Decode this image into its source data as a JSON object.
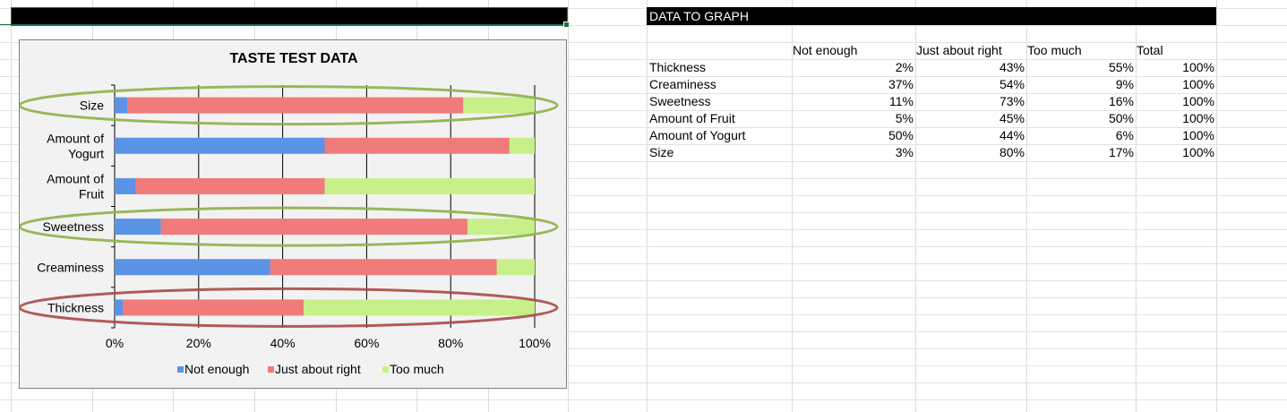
{
  "table": {
    "title": "DATA TO GRAPH",
    "headers": [
      "Not enough",
      "Just about right",
      "Too much",
      "Total"
    ],
    "rows": [
      {
        "label": "Thickness",
        "values": [
          "2%",
          "43%",
          "55%",
          "100%"
        ]
      },
      {
        "label": "Creaminess",
        "values": [
          "37%",
          "54%",
          "9%",
          "100%"
        ]
      },
      {
        "label": "Sweetness",
        "values": [
          "11%",
          "73%",
          "16%",
          "100%"
        ]
      },
      {
        "label": "Amount of Fruit",
        "values": [
          "5%",
          "45%",
          "50%",
          "100%"
        ]
      },
      {
        "label": "Amount of Yogurt",
        "values": [
          "50%",
          "44%",
          "6%",
          "100%"
        ]
      },
      {
        "label": "Size",
        "values": [
          "3%",
          "80%",
          "17%",
          "100%"
        ]
      }
    ]
  },
  "chart_data": {
    "type": "bar",
    "orientation": "horizontal",
    "stacked": true,
    "title": "TASTE TEST DATA",
    "categories": [
      "Size",
      "Amount of Yogurt",
      "Amount of Fruit",
      "Sweetness",
      "Creaminess",
      "Thickness"
    ],
    "category_lines": [
      [
        "Size"
      ],
      [
        "Amount of",
        "Yogurt"
      ],
      [
        "Amount of",
        "Fruit"
      ],
      [
        "Sweetness"
      ],
      [
        "Creaminess"
      ],
      [
        "Thickness"
      ]
    ],
    "series": [
      {
        "name": "Not enough",
        "color": "#5b93e6",
        "values": [
          3,
          50,
          5,
          11,
          37,
          2
        ]
      },
      {
        "name": "Just about right",
        "color": "#f07b7b",
        "values": [
          80,
          44,
          45,
          73,
          54,
          43
        ]
      },
      {
        "name": "Too much",
        "color": "#c8f08a",
        "values": [
          17,
          6,
          50,
          16,
          9,
          55
        ]
      }
    ],
    "xlim": [
      0,
      100
    ],
    "xticks": [
      "0%",
      "20%",
      "40%",
      "60%",
      "80%",
      "100%"
    ],
    "grid": true,
    "legend": "bottom",
    "highlights": [
      {
        "category": "Size",
        "color": "#8fb04a"
      },
      {
        "category": "Sweetness",
        "color": "#8fb04a"
      },
      {
        "category": "Thickness",
        "color": "#a84a48"
      }
    ]
  }
}
